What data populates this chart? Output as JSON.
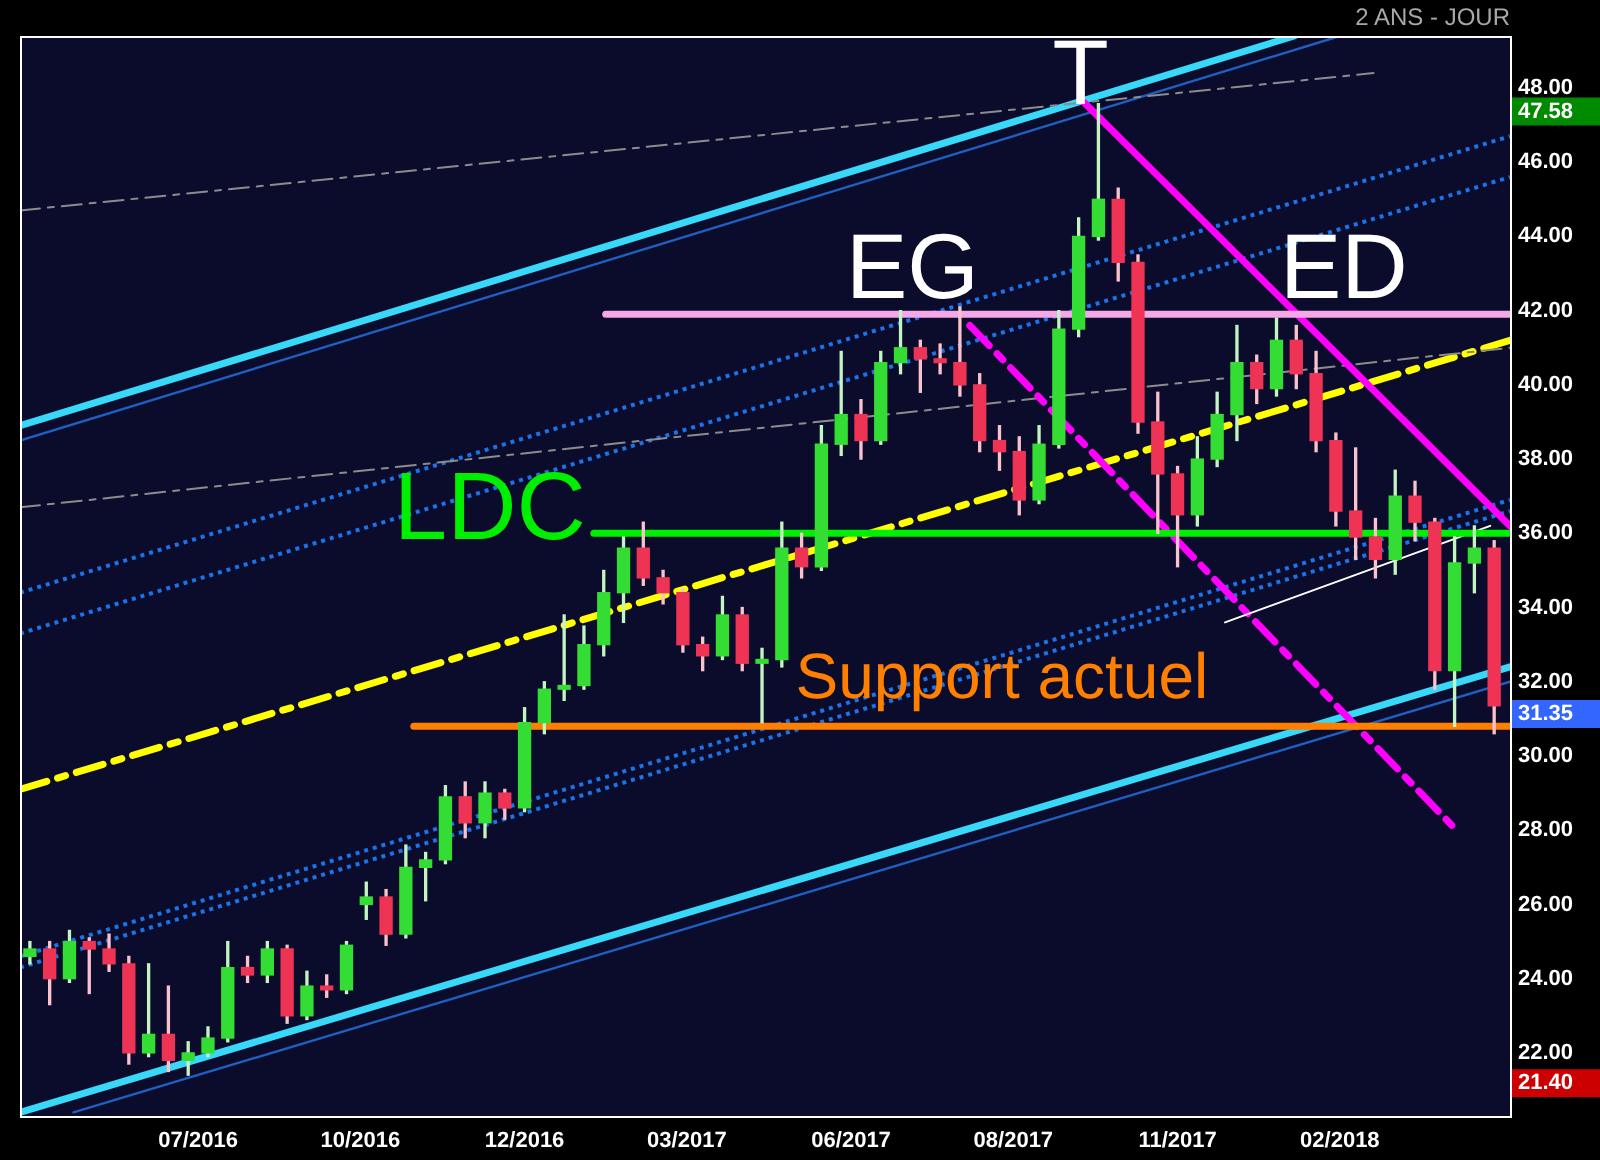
{
  "chart_data": {
    "type": "candlestick",
    "x": [
      "2016-04-21",
      "2016-05-01",
      "2016-05-11",
      "2016-05-21",
      "2016-05-31",
      "2016-06-10",
      "2016-06-20",
      "2016-06-30",
      "2016-07-10",
      "2016-07-20",
      "2016-07-30",
      "2016-08-09",
      "2016-08-19",
      "2016-08-29",
      "2016-09-08",
      "2016-09-18",
      "2016-09-28",
      "2016-10-08",
      "2016-10-18",
      "2016-10-28",
      "2016-11-07",
      "2016-11-17",
      "2016-11-27",
      "2016-12-07",
      "2016-12-17",
      "2016-12-27",
      "2017-01-06",
      "2017-01-16",
      "2017-01-26",
      "2017-02-05",
      "2017-02-15",
      "2017-02-25",
      "2017-03-07",
      "2017-03-17",
      "2017-03-27",
      "2017-04-06",
      "2017-04-16",
      "2017-04-26",
      "2017-05-06",
      "2017-05-16",
      "2017-05-26",
      "2017-06-05",
      "2017-06-15",
      "2017-06-25",
      "2017-07-05",
      "2017-07-15",
      "2017-07-25",
      "2017-08-04",
      "2017-08-14",
      "2017-08-24",
      "2017-09-03",
      "2017-09-13",
      "2017-09-23",
      "2017-10-03",
      "2017-10-13",
      "2017-10-23",
      "2017-11-02",
      "2017-11-12",
      "2017-11-22",
      "2017-12-02",
      "2017-12-12",
      "2017-12-22",
      "2018-01-01",
      "2018-01-11",
      "2018-01-21",
      "2018-01-31",
      "2018-02-10",
      "2018-02-20",
      "2018-03-02",
      "2018-03-12",
      "2018-03-22",
      "2018-04-01",
      "2018-04-11",
      "2018-04-21",
      "2018-05-01"
    ],
    "ohlc": [
      [
        24.6,
        25.0,
        24.4,
        24.8
      ],
      [
        24.8,
        25.0,
        23.3,
        24.0
      ],
      [
        24.0,
        25.3,
        23.9,
        25.0
      ],
      [
        25.0,
        25.1,
        23.6,
        24.8
      ],
      [
        24.8,
        25.2,
        24.2,
        24.4
      ],
      [
        24.4,
        24.6,
        21.7,
        22.0
      ],
      [
        22.0,
        24.4,
        21.9,
        22.5
      ],
      [
        22.5,
        23.8,
        21.5,
        21.8
      ],
      [
        21.8,
        22.3,
        21.4,
        22.0
      ],
      [
        22.0,
        22.7,
        21.9,
        22.4
      ],
      [
        22.4,
        25.0,
        22.3,
        24.3
      ],
      [
        24.3,
        24.6,
        23.9,
        24.1
      ],
      [
        24.1,
        25.0,
        23.9,
        24.8
      ],
      [
        24.8,
        24.9,
        22.8,
        23.0
      ],
      [
        23.0,
        24.2,
        22.9,
        23.8
      ],
      [
        23.8,
        24.1,
        23.5,
        23.7
      ],
      [
        23.7,
        25.0,
        23.6,
        24.9
      ],
      [
        26.0,
        26.6,
        25.6,
        26.2
      ],
      [
        26.2,
        26.4,
        24.9,
        25.2
      ],
      [
        25.2,
        27.6,
        25.1,
        27.0
      ],
      [
        27.0,
        27.4,
        26.1,
        27.2
      ],
      [
        27.2,
        29.2,
        27.1,
        28.9
      ],
      [
        28.9,
        29.3,
        27.8,
        28.2
      ],
      [
        28.2,
        29.3,
        27.8,
        29.0
      ],
      [
        29.0,
        29.1,
        28.3,
        28.6
      ],
      [
        28.6,
        31.3,
        28.5,
        30.9
      ],
      [
        30.9,
        32.0,
        30.6,
        31.8
      ],
      [
        31.8,
        33.8,
        31.5,
        31.9
      ],
      [
        31.9,
        33.5,
        31.8,
        33.0
      ],
      [
        33.0,
        35.0,
        32.7,
        34.4
      ],
      [
        34.4,
        35.9,
        33.6,
        35.6
      ],
      [
        35.6,
        36.3,
        34.6,
        34.8
      ],
      [
        34.8,
        35.0,
        34.1,
        34.4
      ],
      [
        34.4,
        34.5,
        32.8,
        33.0
      ],
      [
        33.0,
        33.2,
        32.3,
        32.7
      ],
      [
        32.7,
        34.3,
        32.6,
        33.8
      ],
      [
        33.8,
        34.0,
        32.3,
        32.5
      ],
      [
        32.5,
        32.9,
        30.9,
        32.6
      ],
      [
        32.6,
        36.3,
        32.4,
        35.6
      ],
      [
        35.6,
        36.0,
        34.8,
        35.1
      ],
      [
        35.1,
        38.9,
        35.0,
        38.4
      ],
      [
        38.4,
        40.9,
        38.1,
        39.2
      ],
      [
        39.2,
        39.6,
        38.0,
        38.5
      ],
      [
        38.5,
        40.9,
        38.4,
        40.6
      ],
      [
        40.6,
        42.0,
        40.3,
        41.0
      ],
      [
        41.0,
        41.2,
        39.8,
        40.7
      ],
      [
        40.7,
        41.1,
        40.3,
        40.6
      ],
      [
        40.6,
        42.1,
        39.7,
        40.0
      ],
      [
        40.0,
        40.3,
        38.2,
        38.5
      ],
      [
        38.5,
        38.9,
        37.7,
        38.2
      ],
      [
        38.2,
        38.6,
        36.5,
        36.9
      ],
      [
        36.9,
        38.9,
        36.8,
        38.4
      ],
      [
        38.4,
        42.0,
        38.3,
        41.5
      ],
      [
        41.5,
        44.5,
        41.3,
        44.0
      ],
      [
        44.0,
        47.58,
        43.9,
        45.0
      ],
      [
        45.0,
        45.3,
        42.8,
        43.3
      ],
      [
        43.3,
        43.5,
        38.7,
        39.0
      ],
      [
        39.0,
        39.8,
        36.0,
        37.6
      ],
      [
        37.6,
        37.8,
        35.1,
        36.5
      ],
      [
        36.5,
        38.6,
        36.2,
        38.0
      ],
      [
        38.0,
        39.8,
        37.8,
        39.2
      ],
      [
        39.2,
        41.6,
        38.5,
        40.6
      ],
      [
        40.6,
        40.8,
        39.5,
        39.9
      ],
      [
        39.9,
        41.8,
        39.7,
        41.2
      ],
      [
        41.2,
        41.6,
        39.9,
        40.3
      ],
      [
        40.3,
        40.9,
        38.2,
        38.5
      ],
      [
        38.5,
        38.7,
        36.2,
        36.6
      ],
      [
        36.6,
        38.3,
        35.3,
        35.9
      ],
      [
        35.9,
        36.4,
        34.8,
        35.3
      ],
      [
        35.3,
        37.7,
        34.9,
        37.0
      ],
      [
        37.0,
        37.4,
        35.8,
        36.3
      ],
      [
        36.3,
        36.4,
        31.8,
        32.3
      ],
      [
        32.3,
        35.9,
        30.8,
        35.2
      ],
      [
        35.2,
        36.2,
        34.4,
        35.6
      ],
      [
        35.6,
        35.8,
        30.6,
        31.35
      ]
    ],
    "colors": [
      "#33dd33",
      "#ee3355",
      "#33dd33",
      "#ee3355",
      "#ee3355",
      "#ee3355",
      "#33dd33",
      "#ee3355",
      "#33dd33",
      "#33dd33",
      "#33dd33",
      "#ee3355",
      "#33dd33",
      "#ee3355",
      "#33dd33",
      "#ee3355",
      "#33dd33",
      "#33dd33",
      "#ee3355",
      "#33dd33",
      "#33dd33",
      "#33dd33",
      "#ee3355",
      "#33dd33",
      "#ee3355",
      "#33dd33",
      "#33dd33",
      "#33dd33",
      "#33dd33",
      "#33dd33",
      "#33dd33",
      "#ee3355",
      "#ee3355",
      "#ee3355",
      "#ee3355",
      "#33dd33",
      "#ee3355",
      "#33dd33",
      "#33dd33",
      "#ee3355",
      "#33dd33",
      "#33dd33",
      "#ee3355",
      "#33dd33",
      "#33dd33",
      "#ee3355",
      "#ee3355",
      "#ee3355",
      "#ee3355",
      "#ee3355",
      "#ee3355",
      "#33dd33",
      "#33dd33",
      "#33dd33",
      "#33dd33",
      "#ee3355",
      "#ee3355",
      "#ee3355",
      "#ee3355",
      "#33dd33",
      "#33dd33",
      "#33dd33",
      "#ee3355",
      "#33dd33",
      "#ee3355",
      "#ee3355",
      "#ee3355",
      "#ee3355",
      "#ee3355",
      "#33dd33",
      "#ee3355",
      "#ee3355",
      "#33dd33",
      "#33dd33",
      "#ee3355"
    ],
    "series": [
      {
        "type": "line",
        "color": "#38d8f8",
        "x": [
          "2016-04-16",
          "2018-01-20"
        ],
        "values": [
          38.9,
          49.4
        ]
      },
      {
        "type": "line",
        "color": "#1f5fbf",
        "x": [
          "2016-04-16",
          "2018-02-12"
        ],
        "values": [
          38.5,
          49.4
        ]
      },
      {
        "type": "line",
        "color": "#38d8f8",
        "x": [
          "2016-04-16",
          "2018-05-09"
        ],
        "values": [
          20.4,
          32.4
        ]
      },
      {
        "type": "line",
        "color": "#1f5fbf",
        "x": [
          "2016-05-13",
          "2018-05-09"
        ],
        "values": [
          20.4,
          32.0
        ]
      },
      {
        "type": "line",
        "color": "#ffff00",
        "line_style": "dashed",
        "x": [
          "2016-04-16",
          "2018-05-09"
        ],
        "values": [
          29.1,
          41.2
        ]
      },
      {
        "type": "line",
        "color": "#1a73e8",
        "line_style": "dotted",
        "x": [
          "2016-04-16",
          "2018-05-09"
        ],
        "values": [
          34.4,
          46.7
        ]
      },
      {
        "type": "line",
        "color": "#1a73e8",
        "line_style": "dotted",
        "x": [
          "2016-04-16",
          "2018-05-09"
        ],
        "values": [
          33.3,
          45.6
        ]
      },
      {
        "type": "line",
        "color": "#1a73e8",
        "line_style": "dotted",
        "x": [
          "2016-04-16",
          "2018-05-09"
        ],
        "values": [
          24.6,
          36.9
        ]
      },
      {
        "type": "line",
        "color": "#1a73e8",
        "line_style": "dotted",
        "x": [
          "2016-04-16",
          "2018-05-09"
        ],
        "values": [
          24.3,
          36.6
        ]
      },
      {
        "type": "line",
        "color": "#8c8c8c",
        "line_style": "dashed",
        "x": [
          "2016-04-16",
          "2018-03-01"
        ],
        "values": [
          44.7,
          48.4
        ]
      },
      {
        "type": "line",
        "color": "#8c8c8c",
        "line_style": "dashed",
        "x": [
          "2016-04-16",
          "2018-05-09"
        ],
        "values": [
          36.7,
          41.0
        ]
      },
      {
        "type": "line",
        "color": "#ff00ff",
        "x": [
          "2017-10-04",
          "2018-05-09"
        ],
        "values": [
          47.7,
          36.2
        ]
      },
      {
        "type": "line",
        "color": "#ff00ff",
        "line_style": "dashed",
        "x": [
          "2017-08-09",
          "2018-04-12"
        ],
        "values": [
          41.6,
          28.0
        ]
      },
      {
        "type": "line",
        "color": "#ffffff",
        "x": [
          "2017-12-16",
          "2018-04-29"
        ],
        "values": [
          33.6,
          36.2
        ]
      },
      {
        "type": "line",
        "color": "#f5a8e8",
        "x": [
          "2017-02-06",
          "2018-05-09"
        ],
        "values": [
          41.9,
          41.9
        ]
      },
      {
        "type": "line",
        "name": "LDC",
        "color": "#00ee00",
        "x": [
          "2017-01-31",
          "2018-05-09"
        ],
        "values": [
          36.0,
          36.0
        ]
      },
      {
        "type": "line",
        "name": "Support actuel",
        "color": "#ff8000",
        "x": [
          "2016-11-01",
          "2018-05-09"
        ],
        "values": [
          30.8,
          30.8
        ]
      }
    ],
    "xlim": [
      "2016-04-16",
      "2018-05-09"
    ],
    "xticks": [
      {
        "value": "2016-07-15",
        "label": "07/2016"
      },
      {
        "value": "2016-10-05",
        "label": "10/2016"
      },
      {
        "value": "2016-12-27",
        "label": "12/2016"
      },
      {
        "value": "2017-03-19",
        "label": "03/2017"
      },
      {
        "value": "2017-06-10",
        "label": "06/2017"
      },
      {
        "value": "2017-08-31",
        "label": "08/2017"
      },
      {
        "value": "2017-11-22",
        "label": "11/2017"
      },
      {
        "value": "2018-02-12",
        "label": "02/2018"
      }
    ],
    "ylim": [
      20.3,
      49.4
    ],
    "yticks": [
      {
        "value": 22,
        "label": "22.00"
      },
      {
        "value": 24,
        "label": "24.00"
      },
      {
        "value": 26,
        "label": "26.00"
      },
      {
        "value": 28,
        "label": "28.00"
      },
      {
        "value": 30,
        "label": "30.00"
      },
      {
        "value": 32,
        "label": "32.00"
      },
      {
        "value": 34,
        "label": "34.00"
      },
      {
        "value": 36,
        "label": "36.00"
      },
      {
        "value": 38,
        "label": "38.00"
      },
      {
        "value": 40,
        "label": "40.00"
      },
      {
        "value": 42,
        "label": "42.00"
      },
      {
        "value": 44,
        "label": "44.00"
      },
      {
        "value": 46,
        "label": "46.00"
      },
      {
        "value": 48,
        "label": "48.00"
      }
    ],
    "y2lim": [
      20.3,
      49.4
    ],
    "y2ticks": [
      47.58,
      31.35,
      {
        "value": 21.4,
        "label": "21.40"
      }
    ],
    "grid": false,
    "legend": false,
    "annotations": [
      "2 ANS - JOUR",
      {
        "text": "T",
        "x": "2017-10-04",
        "y": 47.7
      },
      {
        "text": "EG",
        "x": "2017-07-11",
        "y": 41.9
      },
      {
        "text": "ED",
        "x": "2018-02-14",
        "y": 41.9
      }
    ]
  }
}
